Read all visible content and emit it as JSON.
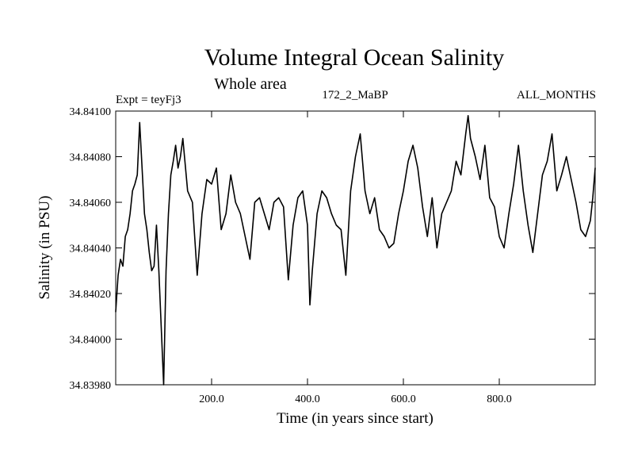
{
  "chart_data": {
    "type": "line",
    "title": "Volume Integral Ocean Salinity",
    "subtitle": "Whole area",
    "experiment_label": "Expt = teyFj3",
    "run_label": "172_2_MaBP",
    "period_label": "ALL_MONTHS",
    "xlabel": "Time (in years since start)",
    "ylabel": "Salinity (in PSU)",
    "xlim": [
      0,
      1000
    ],
    "ylim": [
      34.8398,
      34.841
    ],
    "x_ticks": [
      {
        "value": 200,
        "label": "200.0"
      },
      {
        "value": 400,
        "label": "400.0"
      },
      {
        "value": 600,
        "label": "600.0"
      },
      {
        "value": 800,
        "label": "800.0"
      }
    ],
    "y_ticks": [
      {
        "value": 34.8398,
        "label": "34.83980"
      },
      {
        "value": 34.84,
        "label": "34.84000"
      },
      {
        "value": 34.8402,
        "label": "34.84020"
      },
      {
        "value": 34.8404,
        "label": "34.84040"
      },
      {
        "value": 34.8406,
        "label": "34.84060"
      },
      {
        "value": 34.8408,
        "label": "34.84080"
      },
      {
        "value": 34.841,
        "label": "34.84100"
      }
    ],
    "series": [
      {
        "name": "Salinity",
        "color": "#000000",
        "x": [
          0,
          5,
          10,
          15,
          20,
          25,
          30,
          35,
          40,
          45,
          50,
          55,
          60,
          65,
          70,
          75,
          80,
          85,
          90,
          95,
          100,
          105,
          110,
          115,
          120,
          125,
          130,
          135,
          140,
          150,
          160,
          170,
          180,
          190,
          200,
          210,
          220,
          230,
          240,
          250,
          260,
          270,
          280,
          290,
          300,
          310,
          320,
          330,
          340,
          350,
          360,
          370,
          380,
          390,
          400,
          405,
          410,
          420,
          430,
          440,
          450,
          460,
          470,
          480,
          490,
          500,
          510,
          520,
          530,
          540,
          550,
          560,
          570,
          580,
          590,
          600,
          610,
          620,
          630,
          640,
          650,
          660,
          670,
          680,
          690,
          700,
          710,
          720,
          730,
          735,
          740,
          750,
          760,
          770,
          780,
          790,
          800,
          810,
          820,
          830,
          840,
          850,
          860,
          870,
          880,
          890,
          900,
          910,
          920,
          930,
          940,
          950,
          960,
          970,
          980,
          990,
          995,
          1000
        ],
        "values": [
          34.84012,
          34.84028,
          34.84035,
          34.84032,
          34.84045,
          34.84048,
          34.84055,
          34.84065,
          34.84068,
          34.84072,
          34.84095,
          34.84075,
          34.84055,
          34.84048,
          34.84038,
          34.8403,
          34.84032,
          34.8405,
          34.8403,
          34.84005,
          34.8398,
          34.8403,
          34.84055,
          34.84072,
          34.84078,
          34.84085,
          34.84075,
          34.8408,
          34.84088,
          34.84065,
          34.8406,
          34.84028,
          34.84055,
          34.8407,
          34.84068,
          34.84075,
          34.84048,
          34.84055,
          34.84072,
          34.8406,
          34.84055,
          34.84045,
          34.84035,
          34.8406,
          34.84062,
          34.84055,
          34.84048,
          34.8406,
          34.84062,
          34.84058,
          34.84026,
          34.8405,
          34.84062,
          34.84065,
          34.8405,
          34.84015,
          34.8403,
          34.84055,
          34.84065,
          34.84062,
          34.84055,
          34.8405,
          34.84048,
          34.84028,
          34.84065,
          34.8408,
          34.8409,
          34.84065,
          34.84055,
          34.84062,
          34.84048,
          34.84045,
          34.8404,
          34.84042,
          34.84055,
          34.84065,
          34.84078,
          34.84085,
          34.84075,
          34.84058,
          34.84045,
          34.84062,
          34.8404,
          34.84055,
          34.8406,
          34.84065,
          34.84078,
          34.84072,
          34.8409,
          34.84098,
          34.84088,
          34.8408,
          34.8407,
          34.84085,
          34.84062,
          34.84058,
          34.84045,
          34.8404,
          34.84055,
          34.84068,
          34.84085,
          34.84065,
          34.8405,
          34.84038,
          34.84055,
          34.84072,
          34.84078,
          34.8409,
          34.84065,
          34.84072,
          34.8408,
          34.8407,
          34.8406,
          34.84048,
          34.84045,
          34.84052,
          34.84062,
          34.84075
        ]
      }
    ]
  }
}
